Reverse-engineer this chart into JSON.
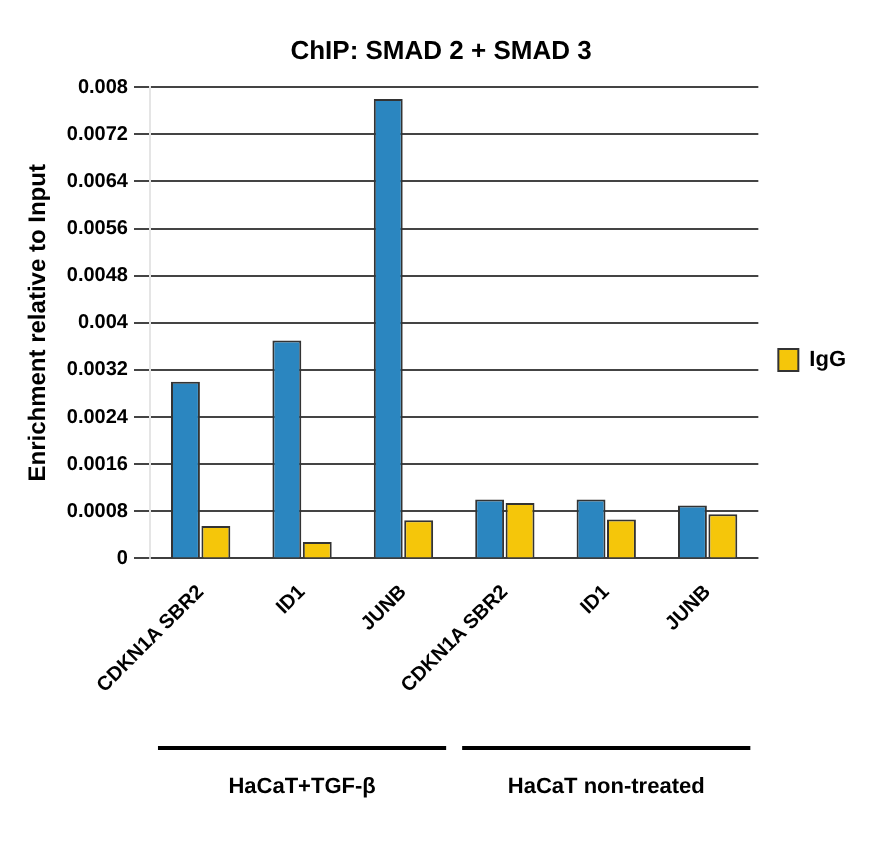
{
  "chart_data": {
    "type": "bar",
    "title": "ChIP: SMAD 2 + SMAD 3",
    "ylabel": "Enrichment relative to Input",
    "categories": [
      "CDKN1A SBR2",
      "ID1",
      "JUNB",
      "CDKN1A SBR2",
      "ID1",
      "JUNB"
    ],
    "series": [
      {
        "color": "#2b86c0",
        "values": [
          0.003,
          0.0037,
          0.0078,
          0.001,
          0.001,
          0.0009
        ]
      },
      {
        "name": "IgG",
        "color": "#f5c60a",
        "values": [
          0.00055,
          0.00028,
          0.00065,
          0.00094,
          0.00066,
          0.00075
        ]
      }
    ],
    "ylim": [
      0,
      0.008
    ],
    "yticks": [
      0,
      0.0008,
      0.0016,
      0.0024,
      0.0032,
      0.004,
      0.0048,
      0.0056,
      0.0064,
      0.0072,
      0.008
    ],
    "grid": "y",
    "legend": "right",
    "annotations": [
      "HaCaT+TGF-β",
      "HaCaT non-treated"
    ]
  }
}
